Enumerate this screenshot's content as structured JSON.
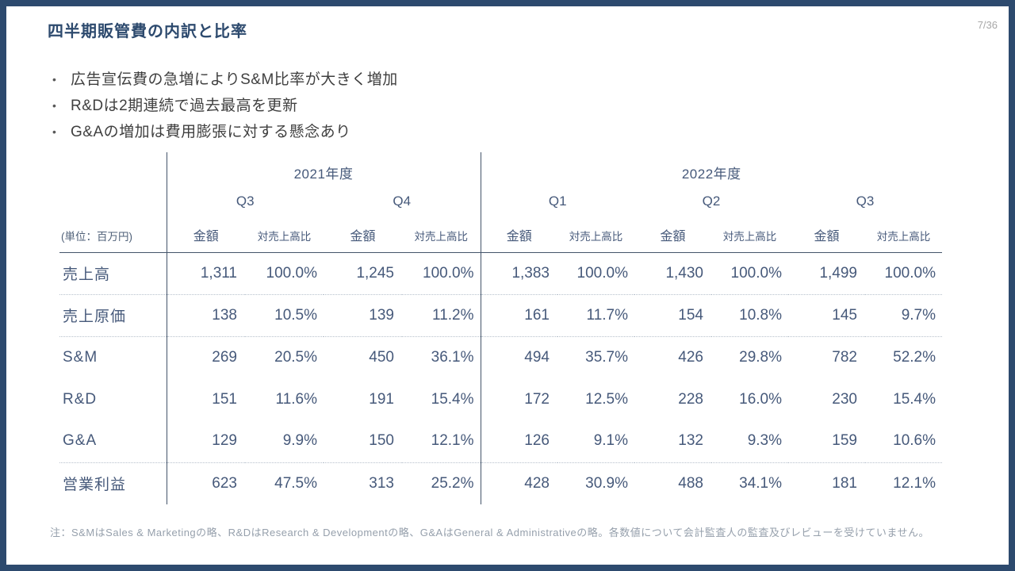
{
  "slide": {
    "title": "四半期販管費の内訳と比率",
    "page_number": "7/36",
    "bullets": [
      "広告宣伝費の急増によりS&M比率が大きく増加",
      "R&Dは2期連続で過去最高を更新",
      "G&Aの増加は費用膨張に対する懸念あり"
    ],
    "note": "注：S&MはSales & Marketingの略、R&DはResearch & Developmentの略、G&AはGeneral & Administrativeの略。各数値について会計監査人の監査及びレビューを受けていません。"
  },
  "colors": {
    "frame": "#2d4a6e",
    "table_text": "#46597a",
    "grid_line": "#44546a",
    "dotted_line": "#b7c1cc",
    "note_text": "#96a0ac"
  },
  "table": {
    "unit_label": "(単位：百万円)",
    "col_headers": {
      "amount": "金額",
      "ratio": "対売上高比"
    },
    "year_groups": [
      {
        "label": "2021年度",
        "quarters": [
          "Q3",
          "Q4"
        ]
      },
      {
        "label": "2022年度",
        "quarters": [
          "Q1",
          "Q2",
          "Q3"
        ]
      }
    ],
    "rows": [
      {
        "label": "売上高",
        "cells": [
          "1,311",
          "100.0%",
          "1,245",
          "100.0%",
          "1,383",
          "100.0%",
          "1,430",
          "100.0%",
          "1,499",
          "100.0%"
        ]
      },
      {
        "label": "売上原価",
        "cells": [
          "138",
          "10.5%",
          "139",
          "11.2%",
          "161",
          "11.7%",
          "154",
          "10.8%",
          "145",
          "9.7%"
        ]
      },
      {
        "label": "S&M",
        "cells": [
          "269",
          "20.5%",
          "450",
          "36.1%",
          "494",
          "35.7%",
          "426",
          "29.8%",
          "782",
          "52.2%"
        ]
      },
      {
        "label": "R&D",
        "cells": [
          "151",
          "11.6%",
          "191",
          "15.4%",
          "172",
          "12.5%",
          "228",
          "16.0%",
          "230",
          "15.4%"
        ]
      },
      {
        "label": "G&A",
        "cells": [
          "129",
          "9.9%",
          "150",
          "12.1%",
          "126",
          "9.1%",
          "132",
          "9.3%",
          "159",
          "10.6%"
        ]
      },
      {
        "label": "営業利益",
        "cells": [
          "623",
          "47.5%",
          "313",
          "25.2%",
          "428",
          "30.9%",
          "488",
          "34.1%",
          "181",
          "12.1%"
        ]
      }
    ]
  }
}
